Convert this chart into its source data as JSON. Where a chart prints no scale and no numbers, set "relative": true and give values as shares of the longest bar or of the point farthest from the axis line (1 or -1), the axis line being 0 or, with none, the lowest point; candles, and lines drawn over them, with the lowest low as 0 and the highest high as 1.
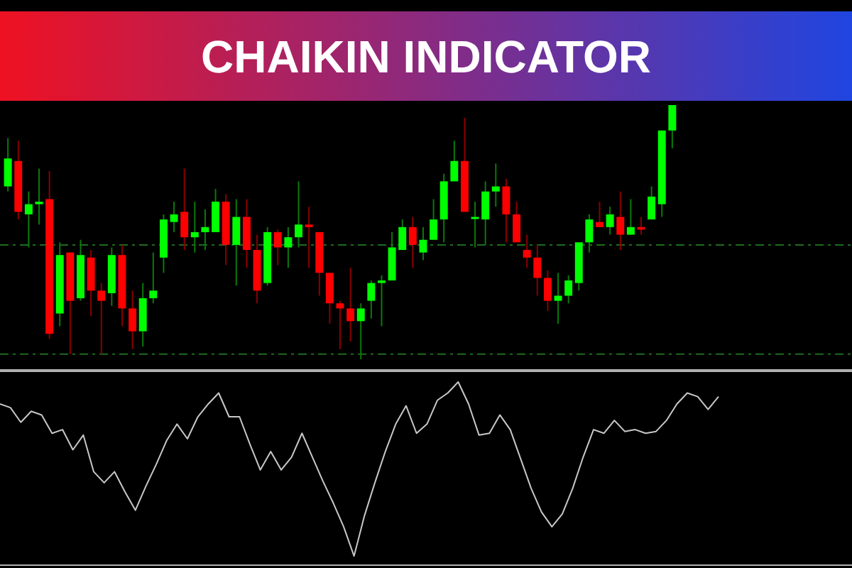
{
  "chart_data": [
    {
      "type": "candlestick",
      "title": "CHAIKIN INDICATOR",
      "relative": true,
      "categories": [
        null,
        null,
        null,
        null,
        null,
        null,
        null,
        null,
        null,
        null,
        null,
        null,
        null,
        null,
        null,
        null,
        null,
        null,
        null,
        null,
        null,
        null,
        null,
        null,
        null,
        null,
        null,
        null,
        null,
        null,
        null,
        null,
        null,
        null,
        null,
        null,
        null,
        null,
        null,
        null,
        null,
        null,
        null,
        null,
        null,
        null,
        null,
        null,
        null,
        null,
        null,
        null,
        null,
        null,
        null,
        null,
        null,
        null,
        null,
        null,
        null,
        null,
        null,
        null,
        null
      ],
      "ohlc": [
        [
          0.68,
          0.87,
          0.66,
          0.79
        ],
        [
          0.78,
          0.86,
          0.55,
          0.58
        ],
        [
          0.57,
          0.66,
          0.44,
          0.61
        ],
        [
          0.61,
          0.75,
          0.53,
          0.62
        ],
        [
          0.63,
          0.74,
          0.08,
          0.1
        ],
        [
          0.18,
          0.46,
          0.13,
          0.41
        ],
        [
          0.42,
          0.42,
          0.02,
          0.23
        ],
        [
          0.24,
          0.47,
          0.23,
          0.41
        ],
        [
          0.4,
          0.43,
          0.17,
          0.27
        ],
        [
          0.27,
          0.3,
          0.02,
          0.23
        ],
        [
          0.26,
          0.44,
          0.21,
          0.41
        ],
        [
          0.41,
          0.45,
          0.13,
          0.2
        ],
        [
          0.2,
          0.27,
          0.04,
          0.11
        ],
        [
          0.11,
          0.3,
          0.05,
          0.24
        ],
        [
          0.24,
          0.42,
          0.22,
          0.27
        ],
        [
          0.4,
          0.57,
          0.34,
          0.55
        ],
        [
          0.54,
          0.62,
          0.5,
          0.57
        ],
        [
          0.58,
          0.75,
          0.43,
          0.48
        ],
        [
          0.48,
          0.62,
          0.42,
          0.5
        ],
        [
          0.5,
          0.59,
          0.43,
          0.52
        ],
        [
          0.5,
          0.67,
          0.5,
          0.62
        ],
        [
          0.62,
          0.65,
          0.37,
          0.45
        ],
        [
          0.45,
          0.63,
          0.29,
          0.56
        ],
        [
          0.56,
          0.63,
          0.36,
          0.43
        ],
        [
          0.43,
          0.49,
          0.22,
          0.27
        ],
        [
          0.3,
          0.52,
          0.29,
          0.5
        ],
        [
          0.5,
          0.51,
          0.37,
          0.44
        ],
        [
          0.44,
          0.52,
          0.36,
          0.48
        ],
        [
          0.48,
          0.7,
          0.44,
          0.53
        ],
        [
          0.53,
          0.6,
          0.36,
          0.52
        ],
        [
          0.5,
          0.5,
          0.25,
          0.34
        ],
        [
          0.34,
          0.34,
          0.14,
          0.22
        ],
        [
          0.22,
          0.23,
          0.04,
          0.2
        ],
        [
          0.2,
          0.36,
          0.07,
          0.15
        ],
        [
          0.15,
          0.22,
          0,
          0.2
        ],
        [
          0.23,
          0.31,
          0.16,
          0.3
        ],
        [
          0.3,
          0.33,
          0.13,
          0.31
        ],
        [
          0.31,
          0.5,
          0.31,
          0.44
        ],
        [
          0.43,
          0.55,
          0.43,
          0.52
        ],
        [
          0.52,
          0.56,
          0.36,
          0.45
        ],
        [
          0.42,
          0.52,
          0.39,
          0.47
        ],
        [
          0.47,
          0.63,
          0.47,
          0.55
        ],
        [
          0.55,
          0.73,
          0.46,
          0.7
        ],
        [
          0.7,
          0.86,
          0.7,
          0.78
        ],
        [
          0.78,
          0.95,
          0.58,
          0.58
        ],
        [
          0.56,
          0.62,
          0.44,
          0.56
        ],
        [
          0.55,
          0.7,
          0.45,
          0.66
        ],
        [
          0.66,
          0.77,
          0.6,
          0.68
        ],
        [
          0.68,
          0.71,
          0.46,
          0.57
        ],
        [
          0.57,
          0.62,
          0.46,
          0.46
        ],
        [
          0.43,
          0.49,
          0.36,
          0.4
        ],
        [
          0.4,
          0.45,
          0.25,
          0.32
        ],
        [
          0.32,
          0.35,
          0.19,
          0.23
        ],
        [
          0.23,
          0.34,
          0.14,
          0.25
        ],
        [
          0.25,
          0.33,
          0.22,
          0.31
        ],
        [
          0.3,
          0.46,
          0.27,
          0.46
        ],
        [
          0.46,
          0.57,
          0.42,
          0.55
        ],
        [
          0.54,
          0.62,
          0.52,
          0.52
        ],
        [
          0.52,
          0.6,
          0.49,
          0.57
        ],
        [
          0.56,
          0.66,
          0.43,
          0.49
        ],
        [
          0.49,
          0.63,
          0.49,
          0.52
        ],
        [
          0.52,
          0.56,
          0.49,
          0.51
        ],
        [
          0.55,
          0.68,
          0.55,
          0.64
        ],
        [
          0.61,
          0.9,
          0.56,
          0.9
        ],
        [
          0.9,
          1,
          0.83,
          1
        ]
      ],
      "ref_lines": [
        {
          "axis": "y",
          "value": 0.45,
          "color": "#1e6b1e",
          "line_style": "dashed"
        },
        {
          "axis": "y",
          "value": 0.02,
          "color": "#1e6b1e",
          "line_style": "dashed"
        }
      ]
    },
    {
      "type": "line",
      "relative": true,
      "categories": [
        null,
        null,
        null,
        null,
        null,
        null,
        null,
        null,
        null,
        null,
        null,
        null,
        null,
        null,
        null,
        null,
        null,
        null,
        null,
        null,
        null,
        null,
        null,
        null,
        null,
        null,
        null,
        null,
        null,
        null,
        null,
        null,
        null,
        null,
        null,
        null,
        null,
        null,
        null,
        null,
        null,
        null,
        null,
        null,
        null,
        null,
        null,
        null,
        null,
        null,
        null,
        null,
        null,
        null,
        null,
        null,
        null,
        null,
        null,
        null,
        null,
        null,
        null,
        null,
        null,
        null,
        null,
        null,
        null,
        null
      ],
      "series": [
        {
          "color": "#c8c8c8",
          "values": [
            0.88,
            0.86,
            0.78,
            0.84,
            0.82,
            0.72,
            0.74,
            0.63,
            0.71,
            0.51,
            0.45,
            0.51,
            0.4,
            0.3,
            0.43,
            0.55,
            0.68,
            0.77,
            0.69,
            0.81,
            0.88,
            0.94,
            0.81,
            0.81,
            0.66,
            0.52,
            0.62,
            0.52,
            0.59,
            0.72,
            0.59,
            0.46,
            0.34,
            0.21,
            0.05,
            0.27,
            0.45,
            0.62,
            0.77,
            0.87,
            0.72,
            0.77,
            0.9,
            0.94,
            1,
            0.88,
            0.71,
            0.72,
            0.82,
            0.74,
            0.58,
            0.42,
            0.29,
            0.21,
            0.28,
            0.42,
            0.59,
            0.74,
            0.72,
            0.79,
            0.73,
            0.74,
            0.72,
            0.73,
            0.79,
            0.88,
            0.94,
            0.92,
            0.85,
            0.92
          ]
        }
      ]
    }
  ]
}
